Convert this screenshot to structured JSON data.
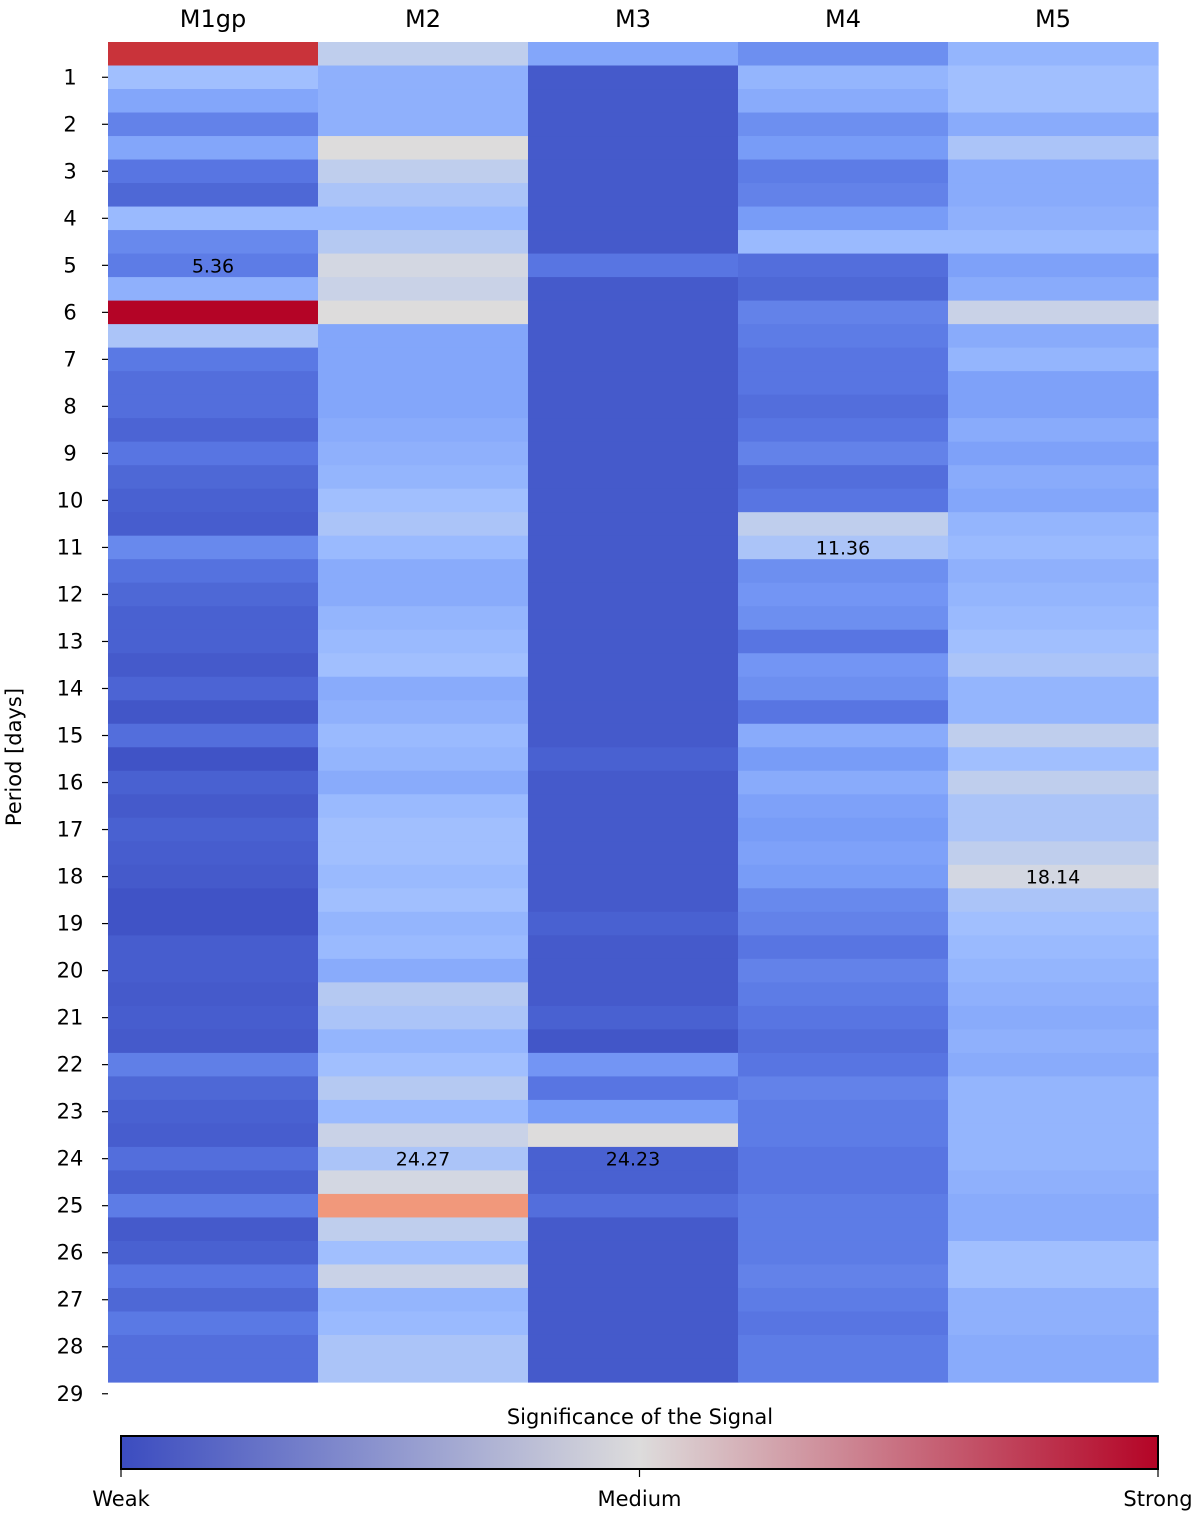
{
  "chart_data": {
    "type": "heatmap",
    "title": "",
    "columns": [
      "M1gp",
      "M2",
      "M3",
      "M4",
      "M5"
    ],
    "ylabel": "Period [days]",
    "yticks": [
      1,
      2,
      3,
      4,
      5,
      6,
      7,
      8,
      9,
      10,
      11,
      12,
      13,
      14,
      15,
      16,
      17,
      18,
      19,
      20,
      21,
      22,
      23,
      24,
      25,
      26,
      27,
      28,
      29
    ],
    "ylim": [
      0.5,
      29.5
    ],
    "row_step": 0.5,
    "rows": 57,
    "scale_range": [
      0,
      1
    ],
    "colormap": "coolwarm",
    "colorbar": {
      "title": "Significance of the Signal",
      "tick_labels": [
        "Weak",
        "Medium",
        "Strong"
      ],
      "colors": [
        "#3b4cc0",
        "#dddcdc",
        "#b40426"
      ]
    },
    "values": [
      [
        0.94,
        0.38,
        0.28,
        0.16,
        0.28,
        0.12,
        0.08,
        0.36,
        0.18,
        0.14,
        0.32,
        1.0,
        0.4,
        0.13,
        0.1,
        0.1,
        0.07,
        0.12,
        0.08,
        0.06,
        0.05,
        0.18,
        0.11,
        0.08,
        0.06,
        0.06,
        0.04,
        0.07,
        0.03,
        0.1,
        0.02,
        0.06,
        0.04,
        0.06,
        0.05,
        0.04,
        0.02,
        0.02,
        0.05,
        0.05,
        0.04,
        0.05,
        0.04,
        0.15,
        0.08,
        0.06,
        0.05,
        0.1,
        0.06,
        0.14,
        0.04,
        0.06,
        0.12,
        0.08,
        0.13,
        0.1,
        0.1
      ],
      [
        0.44,
        0.32,
        0.32,
        0.32,
        0.5,
        0.44,
        0.4,
        0.36,
        0.42,
        0.48,
        0.46,
        0.5,
        0.28,
        0.28,
        0.28,
        0.28,
        0.3,
        0.32,
        0.34,
        0.38,
        0.4,
        0.36,
        0.3,
        0.3,
        0.34,
        0.36,
        0.38,
        0.3,
        0.32,
        0.36,
        0.34,
        0.3,
        0.36,
        0.38,
        0.38,
        0.36,
        0.38,
        0.34,
        0.36,
        0.3,
        0.42,
        0.4,
        0.34,
        0.38,
        0.42,
        0.36,
        0.46,
        0.4,
        0.48,
        0.78,
        0.44,
        0.38,
        0.46,
        0.34,
        0.36,
        0.4,
        0.4
      ],
      [
        0.28,
        0.04,
        0.04,
        0.04,
        0.04,
        0.04,
        0.04,
        0.04,
        0.04,
        0.12,
        0.04,
        0.04,
        0.04,
        0.04,
        0.04,
        0.04,
        0.04,
        0.04,
        0.04,
        0.04,
        0.04,
        0.04,
        0.04,
        0.04,
        0.04,
        0.04,
        0.04,
        0.04,
        0.04,
        0.04,
        0.06,
        0.04,
        0.04,
        0.04,
        0.04,
        0.04,
        0.04,
        0.06,
        0.04,
        0.04,
        0.04,
        0.06,
        0.03,
        0.22,
        0.12,
        0.24,
        0.5,
        0.06,
        0.06,
        0.1,
        0.04,
        0.04,
        0.04,
        0.04,
        0.04,
        0.04,
        0.04
      ],
      [
        0.2,
        0.34,
        0.3,
        0.2,
        0.24,
        0.14,
        0.16,
        0.24,
        0.36,
        0.1,
        0.08,
        0.16,
        0.14,
        0.12,
        0.12,
        0.1,
        0.12,
        0.16,
        0.1,
        0.12,
        0.44,
        0.4,
        0.2,
        0.22,
        0.2,
        0.12,
        0.22,
        0.2,
        0.12,
        0.3,
        0.24,
        0.3,
        0.26,
        0.24,
        0.26,
        0.24,
        0.18,
        0.16,
        0.12,
        0.16,
        0.14,
        0.12,
        0.1,
        0.12,
        0.16,
        0.14,
        0.14,
        0.12,
        0.12,
        0.14,
        0.14,
        0.14,
        0.16,
        0.14,
        0.12,
        0.14,
        0.14
      ],
      [
        0.34,
        0.38,
        0.38,
        0.3,
        0.4,
        0.3,
        0.3,
        0.32,
        0.36,
        0.26,
        0.3,
        0.46,
        0.3,
        0.34,
        0.26,
        0.26,
        0.3,
        0.26,
        0.3,
        0.28,
        0.34,
        0.36,
        0.32,
        0.34,
        0.36,
        0.38,
        0.4,
        0.34,
        0.34,
        0.44,
        0.38,
        0.44,
        0.4,
        0.4,
        0.44,
        0.48,
        0.4,
        0.38,
        0.36,
        0.34,
        0.32,
        0.3,
        0.32,
        0.3,
        0.34,
        0.34,
        0.34,
        0.34,
        0.32,
        0.3,
        0.3,
        0.38,
        0.38,
        0.32,
        0.32,
        0.3,
        0.3
      ]
    ],
    "annotations": [
      {
        "column": "M1gp",
        "period": 5,
        "text": "5.36"
      },
      {
        "column": "M4",
        "period": 11,
        "text": "11.36"
      },
      {
        "column": "M5",
        "period": 18,
        "text": "18.14"
      },
      {
        "column": "M2",
        "period": 24,
        "text": "24.27"
      },
      {
        "column": "M3",
        "period": 24,
        "text": "24.23"
      }
    ]
  }
}
